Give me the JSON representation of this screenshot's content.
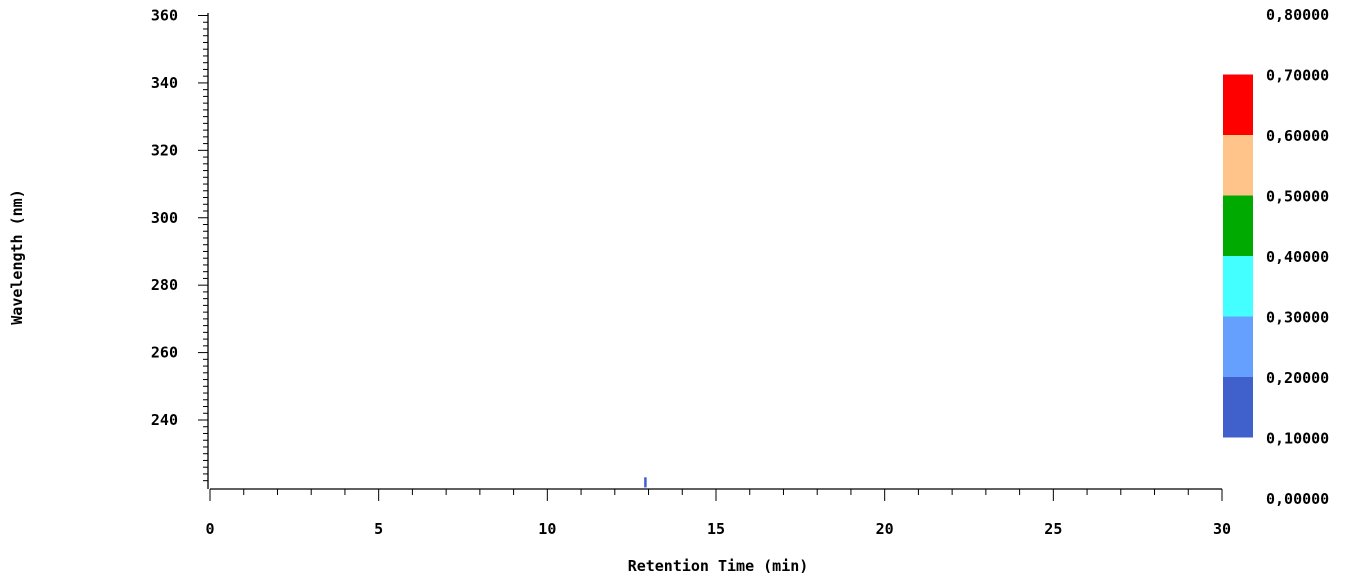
{
  "chart_data": {
    "type": "heatmap",
    "xlabel": "Retention Time (min)",
    "ylabel": "Wavelength (nm)",
    "xlim": [
      0,
      30
    ],
    "ylim": [
      220,
      362
    ],
    "x_ticks": [
      "0",
      "5",
      "10",
      "15",
      "20",
      "25",
      "30"
    ],
    "y_ticks": [
      "240",
      "260",
      "280",
      "300",
      "320",
      "340",
      "360"
    ],
    "colorbar": {
      "labels": [
        "0,80000",
        "0,70000",
        "0,60000",
        "0,50000",
        "0,40000",
        "0,30000",
        "0,20000",
        "0,10000",
        "0,00000"
      ],
      "bands": [
        {
          "from": 0.6,
          "to": 0.7,
          "color": "#ff0000"
        },
        {
          "from": 0.5,
          "to": 0.6,
          "color": "#ffc48a"
        },
        {
          "from": 0.4,
          "to": 0.5,
          "color": "#00aa00"
        },
        {
          "from": 0.3,
          "to": 0.4,
          "color": "#44ffff"
        },
        {
          "from": 0.2,
          "to": 0.3,
          "color": "#66a0ff"
        },
        {
          "from": 0.1,
          "to": 0.2,
          "color": "#4060cc"
        }
      ]
    },
    "peaks": [
      {
        "x": 12.9,
        "y_from": 220,
        "y_to": 223,
        "color": "#4060cc"
      }
    ]
  }
}
